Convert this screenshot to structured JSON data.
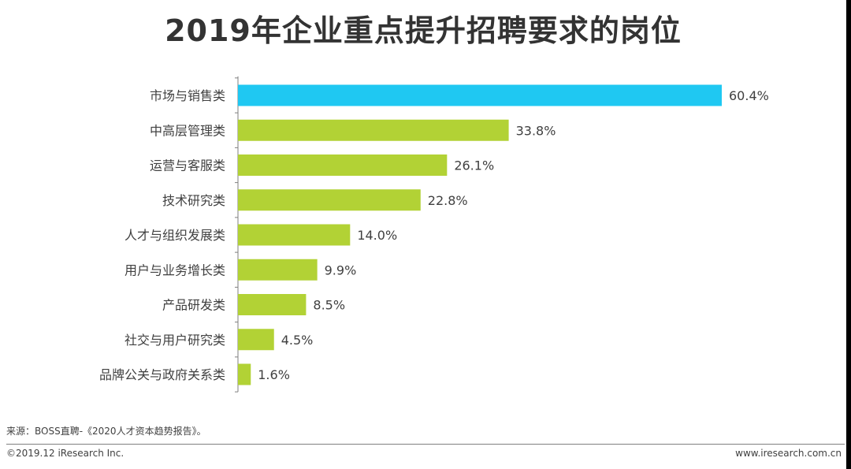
{
  "title": "2019年企业重点提升招聘要求的岗位",
  "chart_data": {
    "type": "bar",
    "orientation": "horizontal",
    "title": "2019年企业重点提升招聘要求的岗位",
    "categories": [
      "市场与销售类",
      "中高层管理类",
      "运营与客服类",
      "技术研究类",
      "人才与组织发展类",
      "用户与业务增长类",
      "产品研发类",
      "社交与用户研究类",
      "品牌公关与政府关系类"
    ],
    "values": [
      60.4,
      33.8,
      26.1,
      22.8,
      14.0,
      9.9,
      8.5,
      4.5,
      1.6
    ],
    "value_labels": [
      "60.4%",
      "33.8%",
      "26.1%",
      "22.8%",
      "14.0%",
      "9.9%",
      "8.5%",
      "4.5%",
      "1.6%"
    ],
    "unit": "%",
    "xlim": [
      0,
      60.4
    ],
    "highlight_index": 0,
    "colors": {
      "highlight": "#1fc8f2",
      "default": "#b2d235",
      "axis": "#7f7f7f"
    },
    "xlabel": "",
    "ylabel": ""
  },
  "footer": {
    "source": "来源：BOSS直聘-《2020人才资本趋势报告》。",
    "copyright": "©2019.12 iResearch Inc.",
    "website": "www.iresearch.com.cn"
  }
}
